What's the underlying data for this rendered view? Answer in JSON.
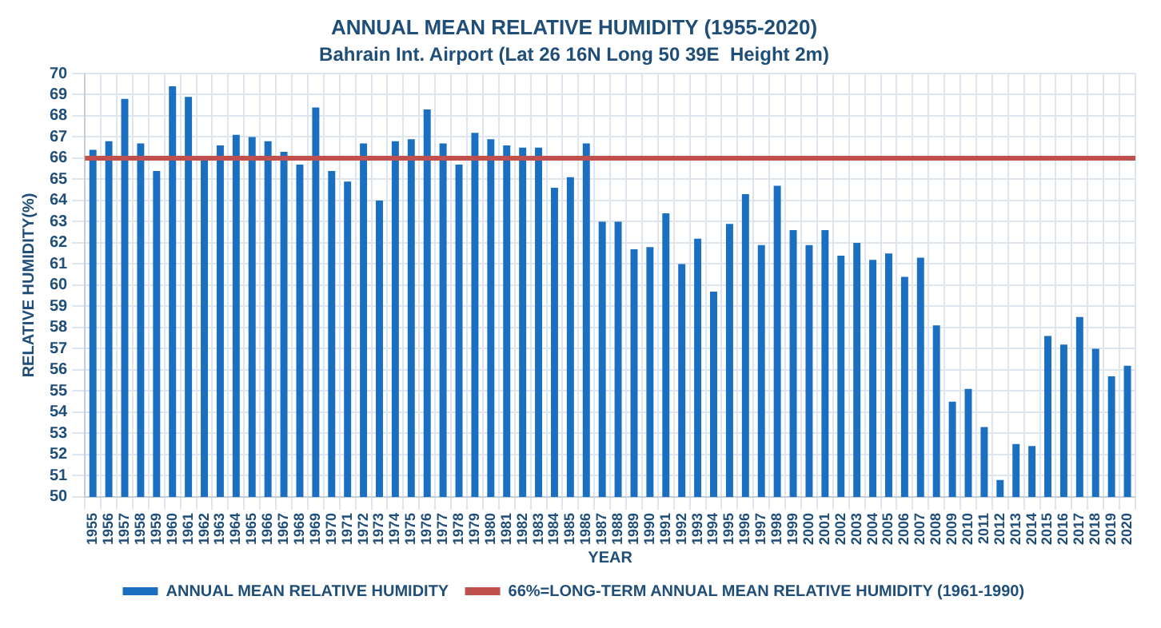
{
  "chart_data": {
    "type": "bar",
    "title": "ANNUAL MEAN RELATIVE HUMIDITY (1955-2020)",
    "subtitle": "Bahrain Int. Airport (Lat 26 16N Long 50 39E  Height 2m)",
    "xlabel": "YEAR",
    "ylabel": "RELATIVE HUMIDITY(%)",
    "categories": [
      "1955",
      "1956",
      "1957",
      "1958",
      "1959",
      "1960",
      "1961",
      "1962",
      "1963",
      "1964",
      "1965",
      "1966",
      "1967",
      "1968",
      "1969",
      "1970",
      "1971",
      "1972",
      "1973",
      "1974",
      "1975",
      "1976",
      "1977",
      "1978",
      "1979",
      "1980",
      "1981",
      "1982",
      "1983",
      "1984",
      "1985",
      "1986",
      "1987",
      "1988",
      "1989",
      "1990",
      "1991",
      "1992",
      "1993",
      "1994",
      "1995",
      "1996",
      "1997",
      "1998",
      "1999",
      "2000",
      "2001",
      "2002",
      "2003",
      "2004",
      "2005",
      "2006",
      "2007",
      "2008",
      "2009",
      "2010",
      "2011",
      "2012",
      "2013",
      "2014",
      "2015",
      "2016",
      "2017",
      "2018",
      "2019",
      "2020"
    ],
    "series": [
      {
        "name": "ANNUAL MEAN RELATIVE HUMIDITY",
        "color": "#1a6fc0",
        "values": [
          66.4,
          66.8,
          68.8,
          66.7,
          65.4,
          69.4,
          68.9,
          65.9,
          66.6,
          67.1,
          67.0,
          66.8,
          66.3,
          65.7,
          68.4,
          65.4,
          64.9,
          66.7,
          64.0,
          66.8,
          66.9,
          68.3,
          66.7,
          65.7,
          67.2,
          66.9,
          66.6,
          66.5,
          66.5,
          64.6,
          65.1,
          66.7,
          63.0,
          63.0,
          61.7,
          61.8,
          63.4,
          61.0,
          62.2,
          59.7,
          62.9,
          64.3,
          61.9,
          64.7,
          62.6,
          61.9,
          62.6,
          61.4,
          62.0,
          61.2,
          61.5,
          60.4,
          61.3,
          58.1,
          54.5,
          55.1,
          53.3,
          50.8,
          52.5,
          52.4,
          57.6,
          57.2,
          58.5,
          57.0,
          55.7,
          56.2
        ]
      }
    ],
    "ylim": [
      50,
      70
    ],
    "yticks": [
      50,
      51,
      52,
      53,
      54,
      55,
      56,
      57,
      58,
      59,
      60,
      61,
      62,
      63,
      64,
      65,
      66,
      67,
      68,
      69,
      70
    ],
    "ref_lines": [
      {
        "axis": "y",
        "value": 66,
        "label": "66%=LONG-TERM ANNUAL MEAN RELATIVE HUMIDITY (1961-1990)",
        "color": "#c0504d"
      }
    ],
    "grid": true,
    "legend": "bottom"
  }
}
